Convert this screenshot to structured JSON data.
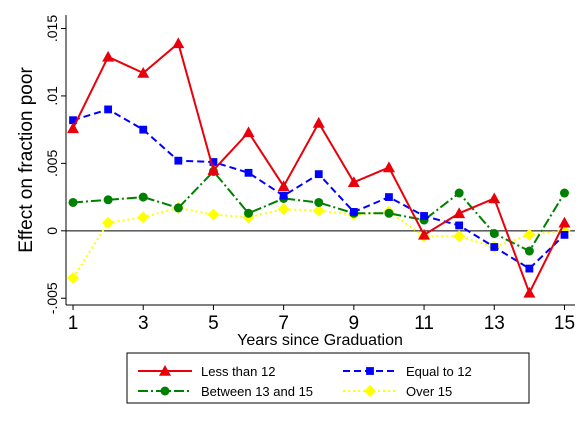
{
  "chart_data": {
    "type": "line",
    "title": "",
    "xlabel": "Years since Graduation",
    "ylabel": "Effect on fraction poor",
    "x": [
      1,
      2,
      3,
      4,
      5,
      6,
      7,
      8,
      9,
      10,
      11,
      12,
      13,
      14,
      15
    ],
    "xticks": [
      1,
      3,
      5,
      7,
      9,
      11,
      13,
      15
    ],
    "xtick_labels": [
      "1",
      "3",
      "5",
      "7",
      "9",
      "11",
      "13",
      "15"
    ],
    "yticks": [
      -0.005,
      0,
      0.005,
      0.01,
      0.015
    ],
    "ytick_labels": [
      "-.005",
      "0",
      ".005",
      ".01",
      ".015"
    ],
    "xlim": [
      0.8,
      15.3
    ],
    "ylim": [
      -0.0055,
      0.016
    ],
    "zero_line": true,
    "grid": false,
    "legend_position": "bottom",
    "series": [
      {
        "name": "Less than 12",
        "color": "#e8000b",
        "dash": "",
        "marker": "triangle",
        "values": [
          0.0076,
          0.0129,
          0.0117,
          0.0139,
          0.0045,
          0.0073,
          0.0033,
          0.008,
          0.0036,
          0.0047,
          -0.0003,
          0.0013,
          0.0024,
          -0.0046,
          0.0006
        ]
      },
      {
        "name": "Equal to 12",
        "color": "#0000ff",
        "dash": "7,4",
        "marker": "square",
        "values": [
          0.0082,
          0.009,
          0.0075,
          0.0052,
          0.0051,
          0.0043,
          0.0026,
          0.0042,
          0.0014,
          0.0025,
          0.0011,
          0.0004,
          -0.0012,
          -0.0028,
          -0.0003
        ]
      },
      {
        "name": "Between 13 and 15",
        "color": "#008000",
        "dash": "10,3,2,3",
        "marker": "circle",
        "values": [
          0.0021,
          0.0023,
          0.0025,
          0.0017,
          0.0044,
          0.0013,
          0.0024,
          0.0021,
          0.0013,
          0.0013,
          0.0008,
          0.0028,
          -0.0002,
          -0.0015,
          0.0028
        ]
      },
      {
        "name": "Over 15",
        "color": "#ffff00",
        "dash": "2,3",
        "marker": "diamond",
        "values": [
          -0.0035,
          0.0006,
          0.001,
          0.0017,
          0.0012,
          0.001,
          0.0016,
          0.0015,
          0.0012,
          0.0014,
          -0.0004,
          -0.0004,
          -0.0012,
          -0.0003,
          0.0
        ]
      }
    ]
  }
}
